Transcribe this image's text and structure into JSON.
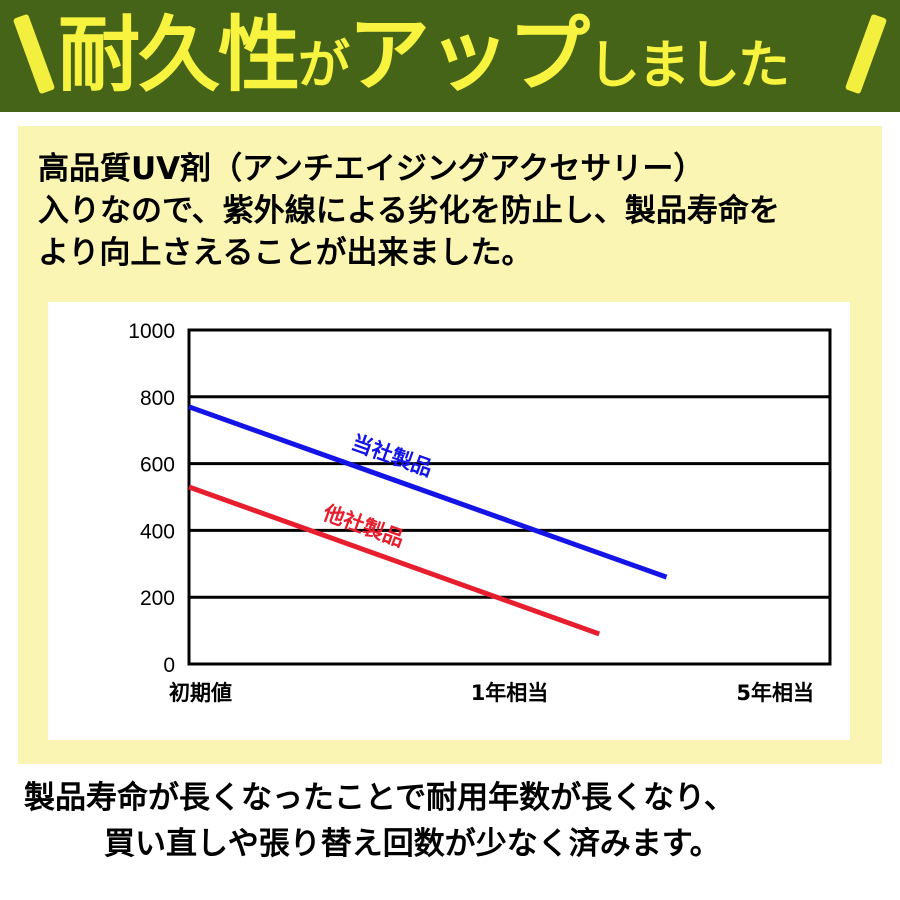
{
  "banner": {
    "title_part1": "耐久性",
    "title_part2": "が",
    "title_part3": "アップ",
    "title_part4": "しました"
  },
  "intro": {
    "line1": "高品質UV剤（アンチエイジングアクセサリー）",
    "line2": "入りなので、紫外線による劣化を防止し、製品寿命を",
    "line3": "より向上さえることが出来ました。"
  },
  "chart_data": {
    "type": "line",
    "title": "",
    "xlabel": "",
    "ylabel": "",
    "categories": [
      "初期値",
      "1年相当",
      "5年相当"
    ],
    "x_range": [
      0,
      2
    ],
    "ylim": [
      0,
      1000
    ],
    "y_ticks": [
      0,
      200,
      400,
      600,
      800,
      1000
    ],
    "grid": true,
    "series": [
      {
        "name": "当社製品",
        "color": "#1414e6",
        "x": [
          0,
          1.49
        ],
        "values": [
          770,
          260
        ]
      },
      {
        "name": "他社製品",
        "color": "#e61e2d",
        "x": [
          0,
          1.28
        ],
        "values": [
          530,
          90
        ]
      }
    ]
  },
  "footer": {
    "line1": "製品寿命が長くなったことで耐用年数が長くなり、",
    "line2": "買い直しや張り替え回数が少なく済みます。"
  }
}
